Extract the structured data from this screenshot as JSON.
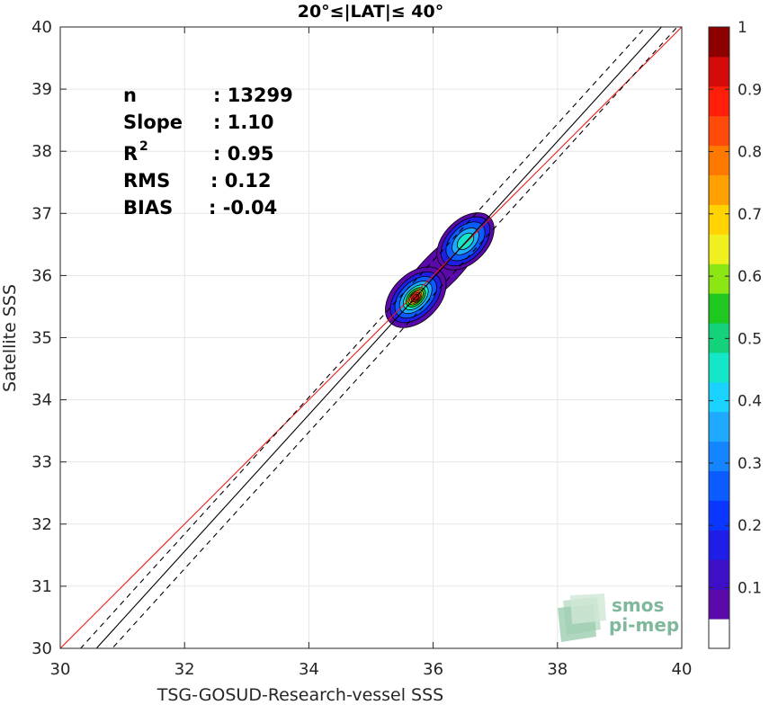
{
  "chart_data": {
    "type": "contour-density-scatter",
    "title": "20°≤|LAT|≤ 40°",
    "xlabel": "TSG-GOSUD-Research-vessel SSS",
    "ylabel": "Satellite SSS",
    "xlim": [
      30,
      40
    ],
    "ylim": [
      30,
      40
    ],
    "xticks": [
      "30",
      "32",
      "34",
      "36",
      "38",
      "40"
    ],
    "yticks": [
      "30",
      "31",
      "32",
      "33",
      "34",
      "35",
      "36",
      "37",
      "38",
      "39",
      "40"
    ],
    "grid": true,
    "stats": [
      {
        "name": "n",
        "value": ": 13299"
      },
      {
        "name": "Slope",
        "value": ": 1.10"
      },
      {
        "name": "R",
        "sup": "2",
        "value": ": 0.95"
      },
      {
        "name": "RMS",
        "value": ": 0.12"
      },
      {
        "name": "BIAS",
        "value": ": -0.04"
      }
    ],
    "lines": [
      {
        "kind": "identity",
        "color": "#e8191b",
        "style": "solid",
        "slope": 1.0,
        "intercept": 0.0
      },
      {
        "kind": "fit",
        "color": "#000000",
        "style": "solid",
        "slope": 1.1,
        "intercept": -3.64
      },
      {
        "kind": "fit-upper",
        "color": "#000000",
        "style": "dashed",
        "slope": 1.1,
        "intercept": -3.36
      },
      {
        "kind": "fit-lower",
        "color": "#000000",
        "style": "dashed",
        "slope": 1.1,
        "intercept": -3.92
      }
    ],
    "density_peaks": [
      {
        "x": 35.72,
        "y": 35.65,
        "level": 1.0
      },
      {
        "x": 36.52,
        "y": 36.55,
        "level": 0.45
      }
    ],
    "colorbar": {
      "ticks": [
        "0.1",
        "0.2",
        "0.3",
        "0.4",
        "0.5",
        "0.6",
        "0.7",
        "0.8",
        "0.9",
        "1"
      ],
      "tick_values": [
        0.1,
        0.2,
        0.3,
        0.4,
        0.5,
        0.6,
        0.7,
        0.8,
        0.9,
        1.0
      ],
      "colors": [
        "#ffffff",
        "#5a0aa8",
        "#3d10c8",
        "#1f1ee6",
        "#0a37ff",
        "#0a5cff",
        "#1484ff",
        "#1eaaff",
        "#19d2ff",
        "#14e6c8",
        "#14d27a",
        "#1ec81e",
        "#8ce614",
        "#f0f01e",
        "#ffd200",
        "#ffa000",
        "#ff7800",
        "#ff4b0a",
        "#ff1e0a",
        "#d20a0a",
        "#8c0000"
      ]
    }
  },
  "logo": {
    "line1": "smos",
    "line2": "pi-mep"
  }
}
